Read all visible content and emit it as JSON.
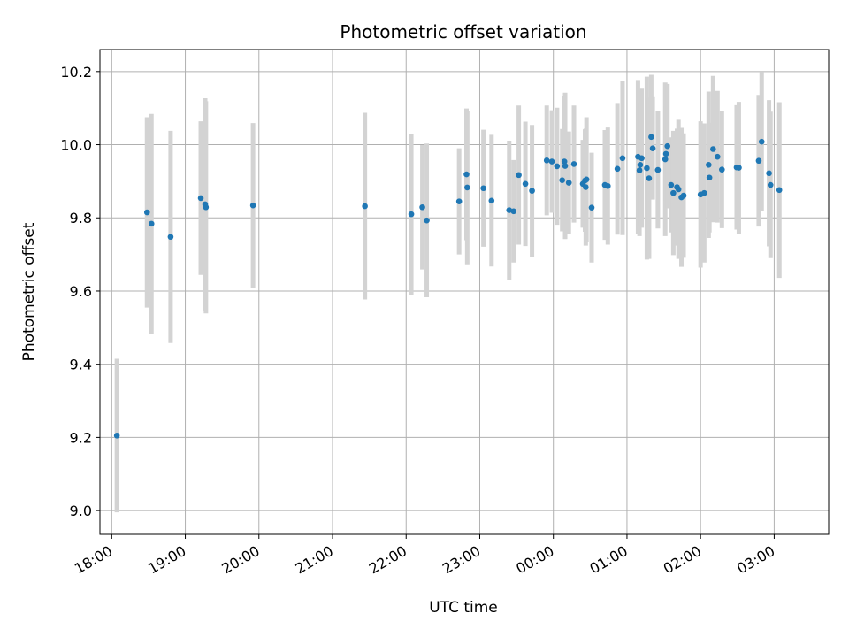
{
  "chart_data": {
    "type": "scatter",
    "title": "Photometric offset variation",
    "xlabel": "UTC time",
    "ylabel": "Photometric offset",
    "x_unit": "UTC time (hours; values past 24 are after midnight)",
    "xlim": [
      17.84,
      27.74
    ],
    "ylim": [
      8.935,
      10.26
    ],
    "y_ticks": [
      9.0,
      9.2,
      9.4,
      9.6,
      9.8,
      10.0,
      10.2
    ],
    "y_tick_labels": [
      "9.0",
      "9.2",
      "9.4",
      "9.6",
      "9.8",
      "10.0",
      "10.2"
    ],
    "x_ticks": [
      18,
      19,
      20,
      21,
      22,
      23,
      24,
      25,
      26,
      27
    ],
    "x_tick_labels": [
      "18:00",
      "19:00",
      "20:00",
      "21:00",
      "22:00",
      "23:00",
      "00:00",
      "01:00",
      "02:00",
      "03:00"
    ],
    "grid": true,
    "colors": {
      "marker": "#1f77b4",
      "errorbar": "#d3d3d3",
      "grid": "#b0b0b0"
    },
    "series": [
      {
        "x": [
          18.07,
          18.48,
          18.54,
          18.8,
          19.21,
          19.27,
          19.28,
          19.92,
          21.44,
          22.07,
          22.22,
          22.28,
          22.72,
          22.82,
          22.83,
          23.05,
          23.16,
          23.4,
          23.46,
          23.53,
          23.62,
          23.71,
          23.91,
          23.98,
          24.05,
          24.12,
          24.15,
          24.16,
          24.21,
          24.28,
          24.4,
          24.43,
          24.44,
          24.45,
          24.52,
          24.7,
          24.74,
          24.87,
          24.94,
          25.15,
          25.17,
          25.18,
          25.2,
          25.27,
          25.3,
          25.33,
          25.35,
          25.42,
          25.52,
          25.53,
          25.55,
          25.6,
          25.63,
          25.68,
          25.7,
          25.74,
          25.77,
          26.0,
          26.05,
          26.11,
          26.12,
          26.17,
          26.23,
          26.29,
          26.49,
          26.52,
          26.79,
          26.83,
          26.93,
          26.95,
          27.07
        ],
        "y": [
          9.205,
          9.815,
          9.784,
          9.748,
          9.854,
          9.837,
          9.829,
          9.834,
          9.832,
          9.81,
          9.829,
          9.793,
          9.845,
          9.919,
          9.883,
          9.881,
          9.847,
          9.821,
          9.818,
          9.917,
          9.893,
          9.874,
          9.957,
          9.954,
          9.941,
          9.903,
          9.954,
          9.942,
          9.896,
          9.947,
          9.893,
          9.902,
          9.884,
          9.905,
          9.828,
          9.89,
          9.887,
          9.934,
          9.963,
          9.967,
          9.93,
          9.945,
          9.963,
          9.936,
          9.908,
          10.021,
          9.99,
          9.931,
          9.96,
          9.975,
          9.996,
          9.89,
          9.868,
          9.884,
          9.878,
          9.856,
          9.861,
          9.864,
          9.868,
          9.945,
          9.91,
          9.988,
          9.967,
          9.932,
          9.938,
          9.937,
          9.956,
          10.008,
          9.922,
          9.89,
          9.876
        ],
        "err": [
          0.21,
          0.26,
          0.3,
          0.29,
          0.21,
          0.29,
          0.29,
          0.225,
          0.255,
          0.22,
          0.17,
          0.21,
          0.145,
          0.18,
          0.21,
          0.16,
          0.18,
          0.19,
          0.14,
          0.19,
          0.17,
          0.18,
          0.15,
          0.14,
          0.16,
          0.14,
          0.18,
          0.2,
          0.14,
          0.16,
          0.12,
          0.14,
          0.16,
          0.17,
          0.15,
          0.15,
          0.16,
          0.18,
          0.21,
          0.21,
          0.18,
          0.17,
          0.19,
          0.25,
          0.22,
          0.17,
          0.14,
          0.16,
          0.21,
          0.13,
          0.17,
          0.13,
          0.17,
          0.16,
          0.19,
          0.19,
          0.17,
          0.2,
          0.19,
          0.2,
          0.15,
          0.2,
          0.18,
          0.16,
          0.17,
          0.18,
          0.18,
          0.19,
          0.2,
          0.2,
          0.24
        ]
      }
    ]
  }
}
